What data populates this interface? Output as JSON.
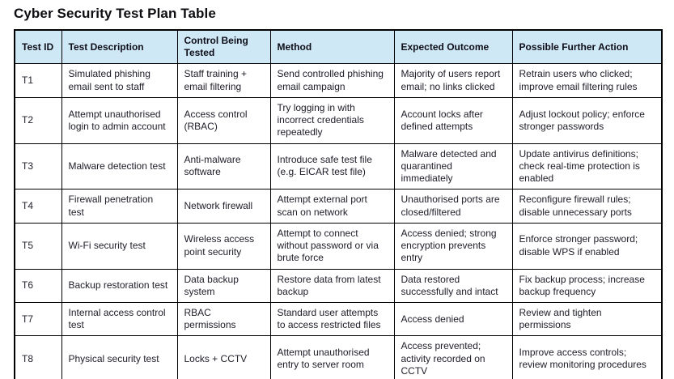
{
  "page": {
    "title": "Cyber Security Test Plan Table"
  },
  "colors": {
    "header_bg": "#cfe8f6",
    "border": "#000000",
    "header_text": "#0e0e18",
    "body_text": "#20202b",
    "row_bg": "#ffffff"
  },
  "table": {
    "columns": [
      "Test ID",
      "Test Description",
      "Control Being Tested",
      "Method",
      "Expected Outcome",
      "Possible Further Action"
    ],
    "rows": [
      [
        "T1",
        "Simulated phishing email sent to staff",
        "Staff training + email filtering",
        "Send controlled phishing email campaign",
        "Majority of users report email; no links clicked",
        "Retrain users who clicked; improve email filtering rules"
      ],
      [
        "T2",
        "Attempt unauthorised login to admin account",
        "Access control (RBAC)",
        "Try logging in with incorrect credentials repeatedly",
        "Account locks after defined attempts",
        "Adjust lockout policy; enforce stronger passwords"
      ],
      [
        "T3",
        "Malware detection test",
        "Anti-malware software",
        "Introduce safe test file (e.g. EICAR test file)",
        "Malware detected and quarantined immediately",
        "Update antivirus definitions; check real-time protection is enabled"
      ],
      [
        "T4",
        "Firewall penetration test",
        "Network firewall",
        "Attempt external port scan on network",
        "Unauthorised ports are closed/filtered",
        "Reconfigure firewall rules; disable unnecessary ports"
      ],
      [
        "T5",
        "Wi-Fi security test",
        "Wireless access point security",
        "Attempt to connect without password or via brute force",
        "Access denied; strong encryption prevents entry",
        "Enforce stronger password; disable WPS if enabled"
      ],
      [
        "T6",
        "Backup restoration test",
        "Data backup system",
        "Restore data from latest backup",
        "Data restored successfully and intact",
        "Fix backup process; increase backup frequency"
      ],
      [
        "T7",
        "Internal access control test",
        "RBAC permissions",
        "Standard user attempts to access restricted files",
        "Access denied",
        "Review and tighten permissions"
      ],
      [
        "T8",
        "Physical security test",
        "Locks + CCTV",
        "Attempt unauthorised entry to server room",
        "Access prevented; activity recorded on CCTV",
        "Improve access controls; review monitoring procedures"
      ]
    ]
  }
}
